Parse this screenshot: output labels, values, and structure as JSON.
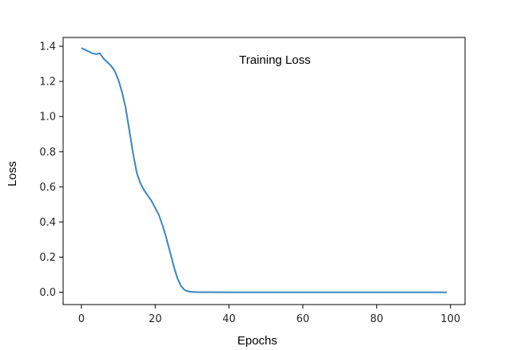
{
  "chart_data": {
    "type": "line",
    "title": "Training Loss",
    "xlabel": "Epochs",
    "ylabel": "Loss",
    "xlim": [
      -4.95,
      103.95
    ],
    "ylim": [
      -0.07,
      1.45
    ],
    "xticks": [
      0,
      20,
      40,
      60,
      80,
      100
    ],
    "yticks": [
      0.0,
      0.2,
      0.4,
      0.6,
      0.8,
      1.0,
      1.2,
      1.4
    ],
    "grid": false,
    "legend": "none",
    "line_color": "#3a86c0",
    "series": [
      {
        "x": [
          0,
          1,
          2,
          3,
          4,
          5,
          6,
          7,
          8,
          9,
          10,
          11,
          12,
          13,
          14,
          15,
          16,
          17,
          18,
          19,
          20,
          21,
          22,
          23,
          24,
          25,
          26,
          27,
          28,
          29,
          30,
          31,
          32,
          33,
          34,
          35,
          40,
          50,
          60,
          70,
          80,
          90,
          99
        ],
        "y": [
          1.39,
          1.38,
          1.37,
          1.36,
          1.355,
          1.36,
          1.33,
          1.31,
          1.29,
          1.26,
          1.21,
          1.14,
          1.05,
          0.92,
          0.79,
          0.68,
          0.62,
          0.58,
          0.55,
          0.52,
          0.48,
          0.44,
          0.38,
          0.31,
          0.23,
          0.15,
          0.08,
          0.035,
          0.012,
          0.005,
          0.002,
          0.001,
          0.0005,
          0.0003,
          0.0002,
          0.0001,
          0.0,
          0.0,
          0.0,
          0.0,
          0.0,
          0.0,
          0.0
        ]
      }
    ]
  }
}
